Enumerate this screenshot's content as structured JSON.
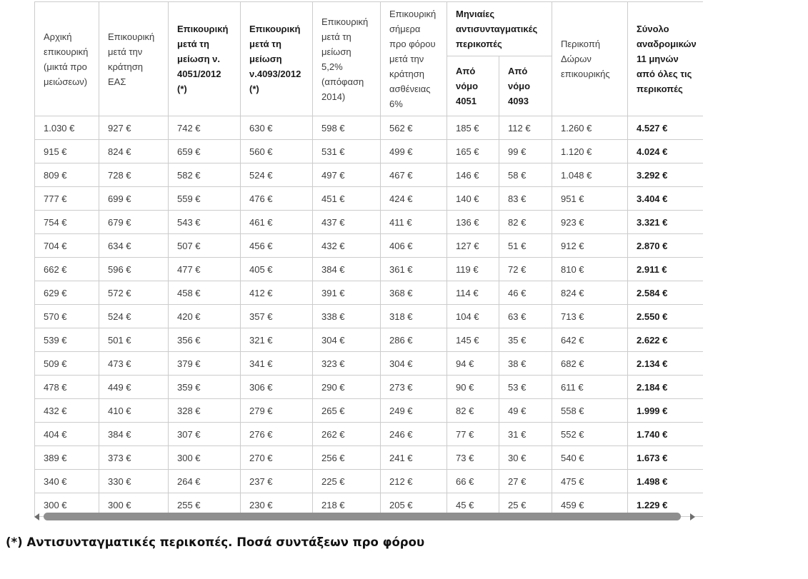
{
  "table": {
    "header": {
      "col1": "Αρχική επικουρική (μικτά προ μειώσεων)",
      "col2": "Επικουρική μετά την κράτηση ΕΑΣ",
      "col3": "Επικουρική μετά τη μείωση ν. 4051/2012 (*)",
      "col4": "Επικουρική μετά τη μείωση ν.4093/2012 (*)",
      "col5": "Επικουρική μετά τη μείωση 5,2% (απόφαση 2014)",
      "col6": "Επικουρική σήμερα προ φόρου μετά την κράτηση ασθένειας 6%",
      "group": "Μηνιαίες αντισυνταγματικές περικοπές",
      "sub1": "Από νόμο 4051",
      "sub2": "Από νόμο 4093",
      "col9": "Περικοπή Δώρων επικουρικής",
      "col10": "Σύνολο αναδρομικών 11 μηνών από όλες τις περικοπές"
    },
    "rows": [
      [
        "1.030 €",
        "927 €",
        "742 €",
        "630 €",
        "598 €",
        "562 €",
        "185 €",
        "112 €",
        "1.260 €",
        "4.527 €"
      ],
      [
        "915 €",
        "824 €",
        "659 €",
        "560 €",
        "531 €",
        "499 €",
        "165 €",
        "99 €",
        "1.120 €",
        "4.024 €"
      ],
      [
        "809 €",
        "728 €",
        "582 €",
        "524 €",
        "497 €",
        "467 €",
        "146 €",
        "58 €",
        "1.048 €",
        "3.292 €"
      ],
      [
        "777 €",
        "699 €",
        "559 €",
        "476 €",
        "451 €",
        "424 €",
        "140 €",
        "83 €",
        "951 €",
        "3.404 €"
      ],
      [
        "754 €",
        "679 €",
        "543 €",
        "461 €",
        "437 €",
        "411 €",
        "136 €",
        "82 €",
        "923 €",
        "3.321 €"
      ],
      [
        "704 €",
        "634 €",
        "507 €",
        "456 €",
        "432 €",
        "406 €",
        "127 €",
        "51 €",
        "912 €",
        "2.870 €"
      ],
      [
        "662 €",
        "596 €",
        "477 €",
        "405 €",
        "384 €",
        "361 €",
        "119 €",
        "72 €",
        "810 €",
        "2.911 €"
      ],
      [
        "629 €",
        "572 €",
        "458 €",
        "412 €",
        "391 €",
        "368 €",
        "114 €",
        "46 €",
        "824 €",
        "2.584 €"
      ],
      [
        "570 €",
        "524 €",
        "420 €",
        "357 €",
        "338 €",
        "318 €",
        "104 €",
        "63 €",
        "713 €",
        "2.550 €"
      ],
      [
        "539 €",
        "501 €",
        "356 €",
        "321 €",
        "304 €",
        "286 €",
        "145 €",
        "35 €",
        "642 €",
        "2.622 €"
      ],
      [
        "509 €",
        "473 €",
        "379 €",
        "341 €",
        "323 €",
        "304 €",
        "94 €",
        "38 €",
        "682 €",
        "2.134 €"
      ],
      [
        "478 €",
        "449 €",
        "359 €",
        "306 €",
        "290 €",
        "273 €",
        "90 €",
        "53 €",
        "611 €",
        "2.184 €"
      ],
      [
        "432 €",
        "410 €",
        "328 €",
        "279 €",
        "265 €",
        "249 €",
        "82 €",
        "49 €",
        "558 €",
        "1.999 €"
      ],
      [
        "404 €",
        "384 €",
        "307 €",
        "276 €",
        "262 €",
        "246 €",
        "77 €",
        "31 €",
        "552 €",
        "1.740 €"
      ],
      [
        "389 €",
        "373 €",
        "300 €",
        "270 €",
        "256 €",
        "241 €",
        "73 €",
        "30 €",
        "540 €",
        "1.673 €"
      ],
      [
        "340 €",
        "330 €",
        "264 €",
        "237 €",
        "225 €",
        "212 €",
        "66 €",
        "27 €",
        "475 €",
        "1.498 €"
      ],
      [
        "300 €",
        "300 €",
        "255 €",
        "230 €",
        "218 €",
        "205 €",
        "45 €",
        "25 €",
        "459 €",
        "1.229 €"
      ]
    ]
  },
  "scrollbar": {
    "left_icon": "left-arrow-icon",
    "right_icon": "right-arrow-icon"
  },
  "footnote": "(*) Αντισυνταγματικές περικοπές. Ποσά συντάξεων προ φόρου",
  "colors": {
    "background": "#ffffff",
    "grid": "#cccccc",
    "text": "#3d3d3d",
    "bold_text": "#1a1a1a",
    "scrollbar_thumb": "#8f8f8f",
    "scrollbar_arrow": "#6e6e6e"
  }
}
